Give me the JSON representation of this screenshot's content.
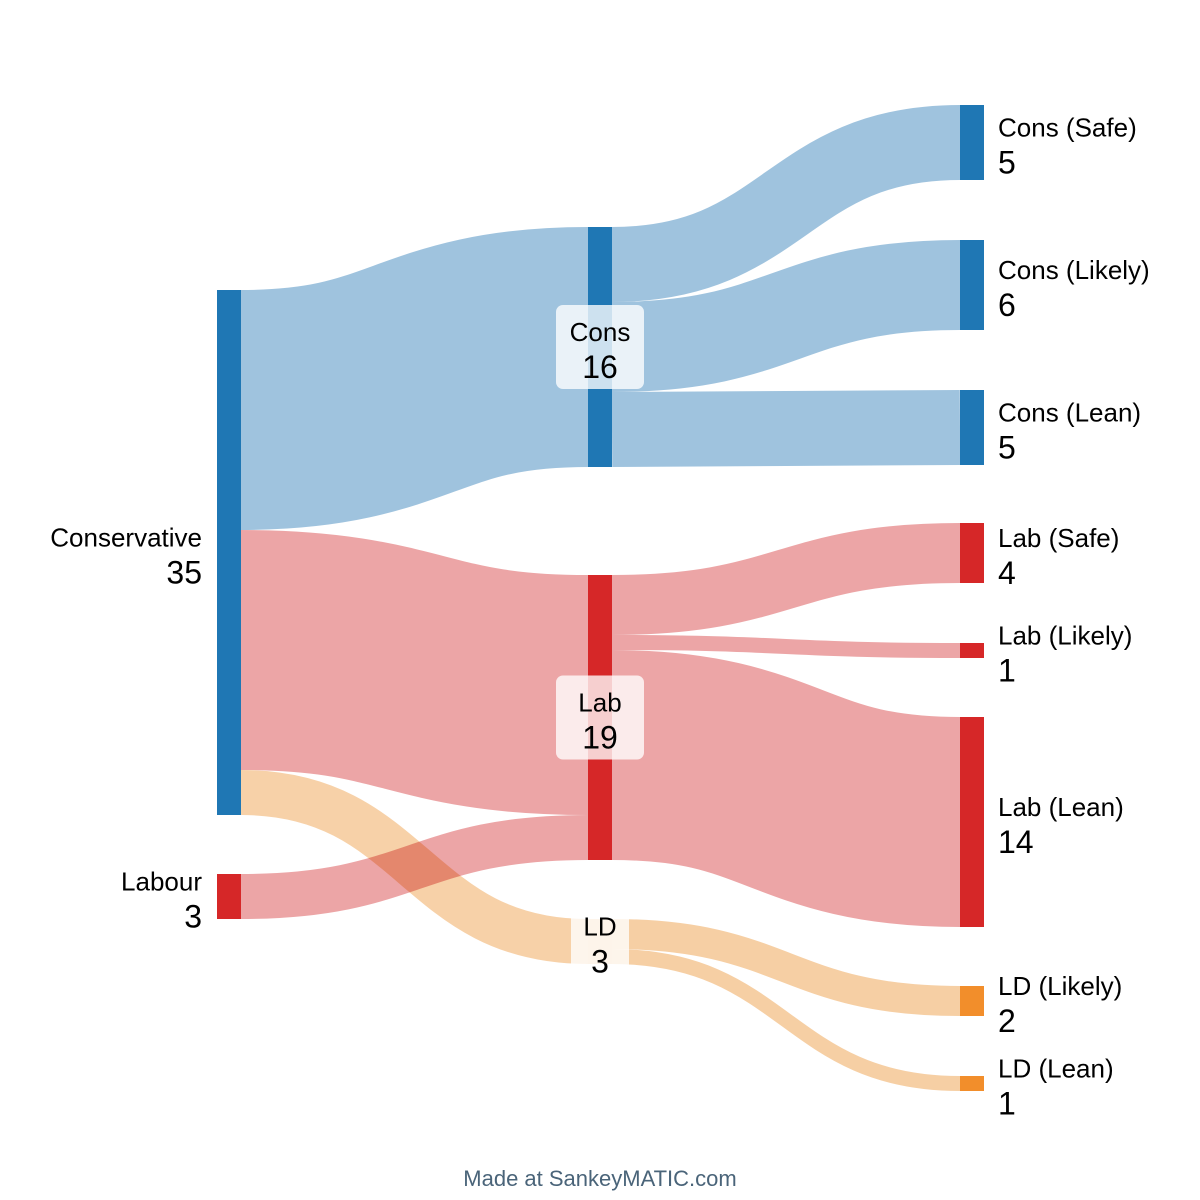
{
  "chart_data": {
    "type": "sankey",
    "title": "",
    "colors": {
      "cons": "#1f77b4",
      "lab": "#d62728",
      "ld": "#f28e2b",
      "cons_flow": "#9ac0dc",
      "lab_flow": "#eba0a1",
      "ld_flow": "#f6cc9f"
    },
    "nodes": [
      {
        "id": "Conservative",
        "label": "Conservative",
        "value": 35,
        "color": "#1f77b4",
        "column": 0
      },
      {
        "id": "Labour",
        "label": "Labour",
        "value": 3,
        "color": "#d62728",
        "column": 0
      },
      {
        "id": "Cons",
        "label": "Cons",
        "value": 16,
        "color": "#1f77b4",
        "column": 1
      },
      {
        "id": "Lab",
        "label": "Lab",
        "value": 19,
        "color": "#d62728",
        "column": 1
      },
      {
        "id": "LD",
        "label": "LD",
        "value": 3,
        "color": "#f6cc9f",
        "column": 1
      },
      {
        "id": "Cons (Safe)",
        "label": "Cons (Safe)",
        "value": 5,
        "color": "#1f77b4",
        "column": 2
      },
      {
        "id": "Cons (Likely)",
        "label": "Cons (Likely)",
        "value": 6,
        "color": "#1f77b4",
        "column": 2
      },
      {
        "id": "Cons (Lean)",
        "label": "Cons (Lean)",
        "value": 5,
        "color": "#1f77b4",
        "column": 2
      },
      {
        "id": "Lab (Safe)",
        "label": "Lab (Safe)",
        "value": 4,
        "color": "#d62728",
        "column": 2
      },
      {
        "id": "Lab (Likely)",
        "label": "Lab (Likely)",
        "value": 1,
        "color": "#d62728",
        "column": 2
      },
      {
        "id": "Lab (Lean)",
        "label": "Lab (Lean)",
        "value": 14,
        "color": "#d62728",
        "column": 2
      },
      {
        "id": "LD (Likely)",
        "label": "LD (Likely)",
        "value": 2,
        "color": "#f28e2b",
        "column": 2
      },
      {
        "id": "LD (Lean)",
        "label": "LD (Lean)",
        "value": 1,
        "color": "#f28e2b",
        "column": 2
      }
    ],
    "links": [
      {
        "source": "Conservative",
        "target": "Cons",
        "value": 16
      },
      {
        "source": "Conservative",
        "target": "Lab",
        "value": 16
      },
      {
        "source": "Conservative",
        "target": "LD",
        "value": 3
      },
      {
        "source": "Labour",
        "target": "Lab",
        "value": 3
      },
      {
        "source": "Cons",
        "target": "Cons (Safe)",
        "value": 5
      },
      {
        "source": "Cons",
        "target": "Cons (Likely)",
        "value": 6
      },
      {
        "source": "Cons",
        "target": "Cons (Lean)",
        "value": 5
      },
      {
        "source": "Lab",
        "target": "Lab (Safe)",
        "value": 4
      },
      {
        "source": "Lab",
        "target": "Lab (Likely)",
        "value": 1
      },
      {
        "source": "Lab",
        "target": "Lab (Lean)",
        "value": 14
      },
      {
        "source": "LD",
        "target": "LD (Likely)",
        "value": 2
      },
      {
        "source": "LD",
        "target": "LD (Lean)",
        "value": 1
      }
    ]
  },
  "footer": {
    "credit": "Made at SankeyMATIC.com"
  }
}
